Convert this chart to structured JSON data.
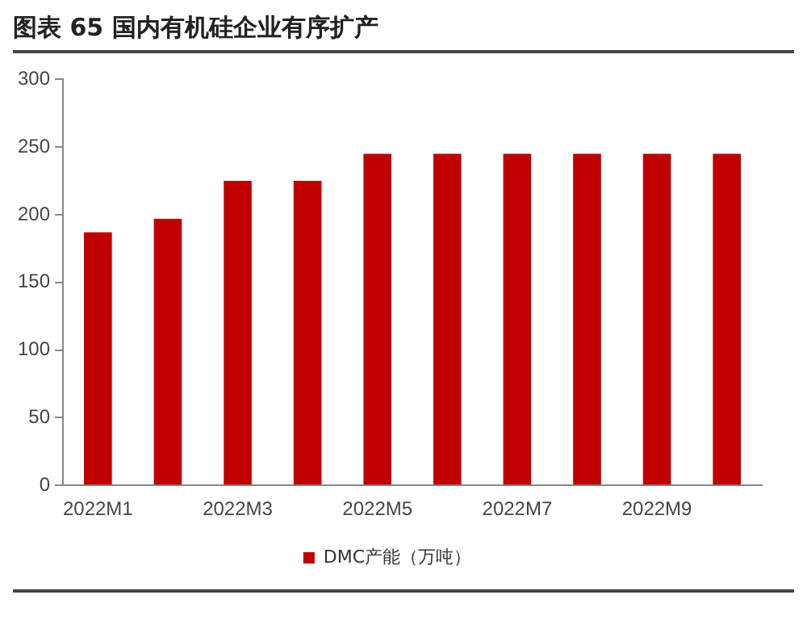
{
  "chart_data": {
    "type": "bar",
    "title": "图表 65 国内有机硅企业有序扩产",
    "categories": [
      "2022M1",
      null,
      "2022M3",
      null,
      "2022M5",
      null,
      "2022M7",
      null,
      "2022M9",
      null
    ],
    "series": [
      {
        "name": "DMC产能（万吨）",
        "color": "#c00000",
        "values": [
          187,
          197,
          225,
          225,
          245,
          245,
          245,
          245,
          245,
          245
        ]
      }
    ],
    "ylim": [
      0,
      300
    ],
    "yticks": [
      0,
      50,
      100,
      150,
      200,
      250,
      300
    ],
    "grid": false,
    "legend": "bottom"
  }
}
